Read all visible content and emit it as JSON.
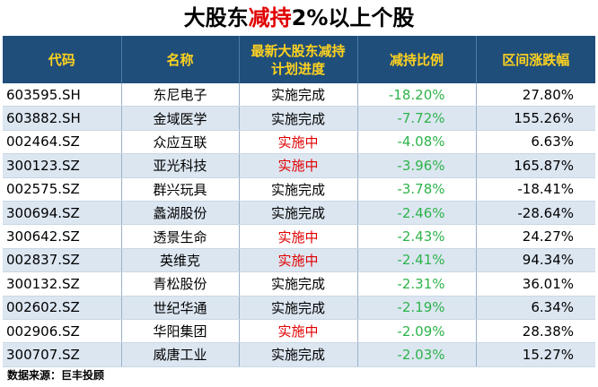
{
  "title": {
    "part1": "大股东",
    "part2": "减持",
    "part3": "2%以上个股"
  },
  "headers": {
    "code": "代码",
    "name": "名称",
    "progress_line1": "最新大股东减持",
    "progress_line2": "计划进度",
    "ratio": "减持比例",
    "range": "区间涨跌幅"
  },
  "rows": [
    {
      "code": "603595.SH",
      "name": "东尼电子",
      "progress": "实施完成",
      "ratio": "-18.20%",
      "range": "27.80%"
    },
    {
      "code": "603882.SH",
      "name": "金域医学",
      "progress": "实施完成",
      "ratio": "-7.72%",
      "range": "155.26%"
    },
    {
      "code": "002464.SZ",
      "name": "众应互联",
      "progress": "实施中",
      "ratio": "-4.08%",
      "range": "6.63%"
    },
    {
      "code": "300123.SZ",
      "name": "亚光科技",
      "progress": "实施中",
      "ratio": "-3.96%",
      "range": "165.87%"
    },
    {
      "code": "002575.SZ",
      "name": "群兴玩具",
      "progress": "实施完成",
      "ratio": "-3.78%",
      "range": "-18.41%"
    },
    {
      "code": "300694.SZ",
      "name": "蠡湖股份",
      "progress": "实施完成",
      "ratio": "-2.46%",
      "range": "-28.64%"
    },
    {
      "code": "300642.SZ",
      "name": "透景生命",
      "progress": "实施中",
      "ratio": "-2.43%",
      "range": "24.27%"
    },
    {
      "code": "002837.SZ",
      "name": "英维克",
      "progress": "实施中",
      "ratio": "-2.41%",
      "range": "94.34%"
    },
    {
      "code": "300132.SZ",
      "name": "青松股份",
      "progress": "实施完成",
      "ratio": "-2.31%",
      "range": "36.01%"
    },
    {
      "code": "002602.SZ",
      "name": "世纪华通",
      "progress": "实施完成",
      "ratio": "-2.19%",
      "range": "6.34%"
    },
    {
      "code": "002906.SZ",
      "name": "华阳集团",
      "progress": "实施中",
      "ratio": "-2.09%",
      "range": "28.38%"
    },
    {
      "code": "300707.SZ",
      "name": "威唐工业",
      "progress": "实施完成",
      "ratio": "-2.03%",
      "range": "15.27%"
    }
  ],
  "source": "数据来源：巨丰投顾",
  "colors": {
    "header_bg": "#1f4e7a",
    "header_text": "#ffd21f",
    "row_alt": "#dce6f1",
    "ongoing_text": "#e00000",
    "ratio_text": "#2db34a"
  }
}
